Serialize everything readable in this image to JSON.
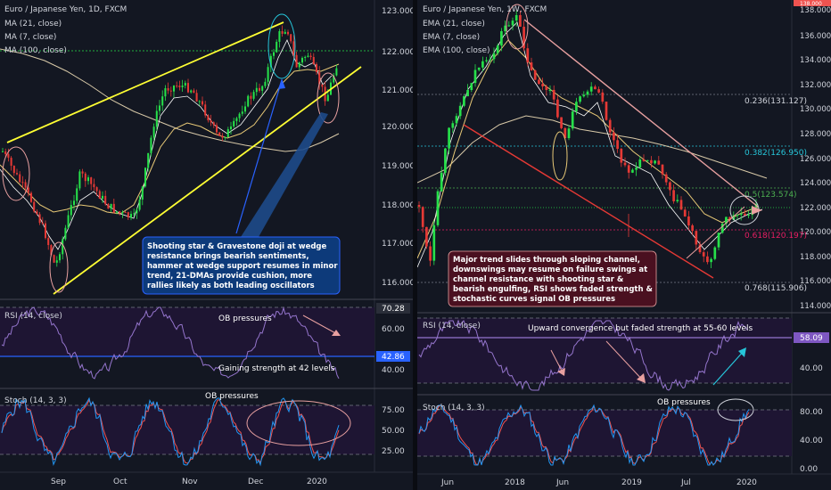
{
  "left": {
    "title": "Euro / Japanese Yen, 1D, FXCM",
    "ma_labels": [
      "MA (21, close)",
      "MA (7, close)",
      "MA (100, close)"
    ],
    "price_ticks": [
      "123.000",
      "122.000",
      "121.000",
      "120.000",
      "119.000",
      "118.000",
      "117.000",
      "116.000"
    ],
    "x_ticks": [
      "Sep",
      "Oct",
      "Nov",
      "Dec",
      "2020"
    ],
    "annotation": [
      "Shooting star & Gravestone doji at wedge",
      "resistance brings bearish sentiments,",
      "hammer at wedge support resumes in minor",
      "trend, 21-DMAs provide cushion, more",
      "rallies likely as both leading oscillators"
    ],
    "rsi": {
      "label": "RSI (14, close)",
      "ticks": [
        "60.00",
        "40.00"
      ],
      "tag_upper": "70.28",
      "tag_lower": "42.86",
      "note_top": "OB pressures",
      "note_bottom": "Gaining strength at 42 levels"
    },
    "stoch": {
      "label": "Stoch (14, 3, 3)",
      "ticks": [
        "75.00",
        "50.00",
        "25.00"
      ],
      "note": "OB pressures"
    }
  },
  "right": {
    "title": "Euro / Japanese Yen, 1W, FXCM",
    "ema_labels": [
      "EMA (21, close)",
      "EMA (7, close)",
      "EMA (100, close)"
    ],
    "price_ticks": [
      "138.000",
      "136.000",
      "134.000",
      "132.000",
      "130.000",
      "128.000",
      "126.000",
      "124.000",
      "122.000",
      "120.000",
      "118.000",
      "116.000",
      "114.000"
    ],
    "top_tag": "138.000",
    "x_ticks": [
      "Jun",
      "2018",
      "Jun",
      "2019",
      "Jul",
      "2020"
    ],
    "fib_levels": [
      {
        "label": "0.236(131.127)",
        "color": "#d1d4dc"
      },
      {
        "label": "0.382(126.950)",
        "color": "#26c6da"
      },
      {
        "label": "0.5(123.574)",
        "color": "#4caf50"
      },
      {
        "label": "0.618(120.197)",
        "color": "#e91e63"
      },
      {
        "label": "0.768(115.906)",
        "color": "#d1d4dc"
      }
    ],
    "annotation": [
      "Major trend slides through sloping channel,",
      "downswings may resume on failure swings at",
      "channel resistance with shooting star &",
      "bearish engulfing, RSI shows faded strength &",
      "stochastic curves signal OB pressures"
    ],
    "rsi": {
      "label": "RSI (14, close)",
      "ticks": [
        "40.00"
      ],
      "tag": "58.09",
      "note": "Upward convergence but faded strength at 55-60 levels"
    },
    "stoch": {
      "label": "Stoch (14, 3, 3)",
      "ticks": [
        "80.00",
        "40.00",
        "0.00"
      ],
      "note": "OB pressures"
    }
  },
  "colors": {
    "background": "#131722",
    "up_candle": "#26e04a",
    "down_candle": "#e53935",
    "wedge": "#ffff33",
    "oscillator_zone": "#1e1533",
    "rsi_line": "#9575cd",
    "stoch_k": "#2196f3",
    "stoch_d": "#ef5350",
    "left_annotation_bg": "#0d3a7a",
    "right_annotation_bg": "#4a1020"
  }
}
